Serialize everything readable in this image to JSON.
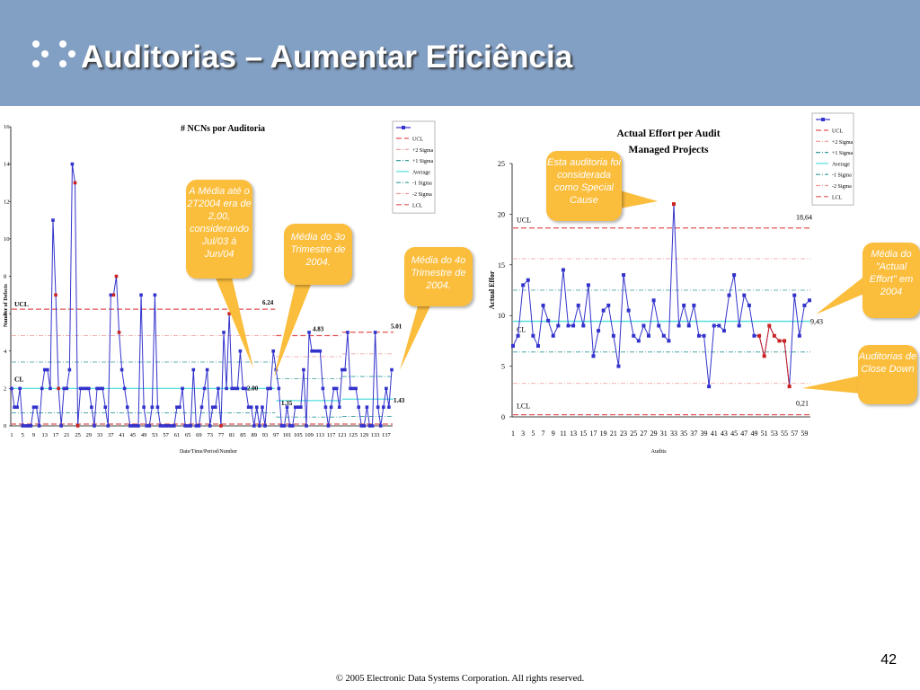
{
  "slide": {
    "title": "Auditorias – Aumentar Eficiência",
    "page_number": "42",
    "footer": "© 2005 Electronic Data Systems Corporation. All rights reserved."
  },
  "callouts": {
    "left1": "A Média até o 2T2004 era de 2,00, considerando Jul/03 à Jun/04",
    "left2": "Média do 3o Trimestre de 2004.",
    "left3": "Média do 4o Trimestre de 2004.",
    "right1": "Esta auditoria foi considerada como Special Cause",
    "right2": "Média do \"Actual Effort\" em 2004",
    "right3": "Auditorias de Close Down"
  },
  "colors": {
    "header": "#829fc4",
    "callout": "#fbbd3c",
    "series": "#3333cc",
    "out_of_control": "#cc2222",
    "ucl": "#e05555",
    "average": "#55dddd",
    "sigma1": "#339999",
    "sigma2": "#ee9999"
  },
  "chart_data": [
    {
      "type": "line",
      "title": "# NCNs por Auditoria",
      "xlabel": "Date/Time/Period/Number",
      "ylabel": "Number of Defects",
      "ylim": [
        0,
        16
      ],
      "yticks": [
        0,
        2,
        4,
        6,
        8,
        10,
        12,
        14,
        16
      ],
      "xtick_labels": [
        "1",
        "5",
        "9",
        "13",
        "17",
        "21",
        "25",
        "29",
        "33",
        "37",
        "41",
        "45",
        "49",
        "53",
        "57",
        "61",
        "65",
        "69",
        "73",
        "77",
        "81",
        "85",
        "89",
        "93",
        "97",
        "101",
        "105",
        "109",
        "113",
        "117",
        "121",
        "125",
        "129",
        "133",
        "137"
      ],
      "legend": [
        "UCL",
        "+2 Sigma",
        "+1 Sigma",
        "Average",
        "-1 Sigma",
        "-2 Sigma",
        "LCL"
      ],
      "legend_position": "top-right",
      "control_labels": {
        "ucl": "UCL",
        "cl": "CL"
      },
      "limit_labels": [
        "6.24",
        "2.00",
        "1.35",
        "4.83",
        "5.01",
        "1.43"
      ],
      "segments": [
        {
          "x_start": 1,
          "x_end": 96,
          "ucl": 6.24,
          "cl": 2.0,
          "plus2": 4.83,
          "plus1": 3.41
        },
        {
          "x_start": 97,
          "x_end": 120,
          "ucl": 4.83,
          "cl": 1.35,
          "plus2": 3.7,
          "plus1": 2.53
        },
        {
          "x_start": 121,
          "x_end": 139,
          "ucl": 5.01,
          "cl": 1.43,
          "plus2": 3.85,
          "plus1": 2.64
        }
      ],
      "values": [
        2,
        1,
        1,
        2,
        0,
        0,
        0,
        0,
        1,
        1,
        0,
        2,
        3,
        3,
        2,
        11,
        7,
        2,
        0,
        2,
        2,
        3,
        14,
        13,
        0,
        2,
        2,
        2,
        2,
        1,
        0,
        2,
        2,
        2,
        1,
        0,
        7,
        7,
        8,
        5,
        3,
        2,
        1,
        0,
        0,
        0,
        0,
        7,
        1,
        0,
        0,
        1,
        7,
        1,
        0,
        0,
        0,
        0,
        0,
        0,
        1,
        1,
        2,
        0,
        0,
        0,
        3,
        0,
        0,
        1,
        2,
        3,
        0,
        1,
        1,
        2,
        0,
        5,
        2,
        6,
        2,
        2,
        2,
        4,
        2,
        2,
        1,
        1,
        0,
        1,
        0,
        1,
        0,
        2,
        2,
        4,
        3,
        2,
        0,
        0,
        1,
        0,
        0,
        1,
        1,
        1,
        3,
        0,
        5,
        4,
        4,
        4,
        4,
        2,
        1,
        0,
        1,
        2,
        2,
        1,
        3,
        3,
        5,
        2,
        2,
        2,
        1,
        0,
        0,
        1,
        0,
        0,
        5,
        1,
        0,
        1,
        2,
        1,
        3
      ],
      "out_of_control_x": [
        17,
        18,
        24,
        25,
        38,
        39,
        40,
        77,
        80
      ]
    },
    {
      "type": "line",
      "title": "Actual Effort per Audit",
      "subtitle": "Managed Projects",
      "xlabel": "Audits",
      "ylabel": "Actual Effor",
      "ylim": [
        0,
        25
      ],
      "yticks": [
        0,
        5,
        10,
        15,
        20,
        25
      ],
      "xtick_labels": [
        "1",
        "3",
        "5",
        "7",
        "9",
        "11",
        "13",
        "15",
        "17",
        "19",
        "21",
        "23",
        "25",
        "27",
        "29",
        "31",
        "33",
        "35",
        "37",
        "39",
        "41",
        "43",
        "45",
        "47",
        "49",
        "51",
        "53",
        "55",
        "57",
        "59"
      ],
      "legend": [
        "UCL",
        "+2 Sigma",
        "+1 Sigma",
        "Average",
        "-1 Sigma",
        "-2 Sigma",
        "LCL"
      ],
      "legend_position": "top-right",
      "control_labels": {
        "ucl": "UCL",
        "cl": "CL",
        "lcl": "LCL"
      },
      "ucl": 18.64,
      "average": 9.43,
      "lcl": 0.21,
      "plus2": 15.6,
      "plus1": 12.5,
      "minus1": 6.4,
      "minus2": 3.3,
      "limit_labels": [
        "18,64",
        "9,43",
        "0,21"
      ],
      "values": [
        7,
        8,
        13,
        13.5,
        8,
        7,
        11,
        9.5,
        8,
        9,
        14.5,
        9,
        9,
        11,
        9,
        13,
        6,
        8.5,
        10.5,
        11,
        8,
        5,
        14,
        10.5,
        8,
        7.5,
        9,
        8,
        11.5,
        9,
        8,
        7.5,
        21,
        9,
        11,
        9,
        11,
        8,
        8,
        3,
        9,
        9,
        8.5,
        12,
        14,
        9,
        12,
        11,
        8,
        8,
        6,
        9,
        8,
        7.5,
        7.5,
        3,
        12,
        8,
        11,
        11.5
      ],
      "out_of_control_x": [
        33,
        50,
        51,
        52,
        53,
        54,
        55,
        56
      ]
    }
  ]
}
